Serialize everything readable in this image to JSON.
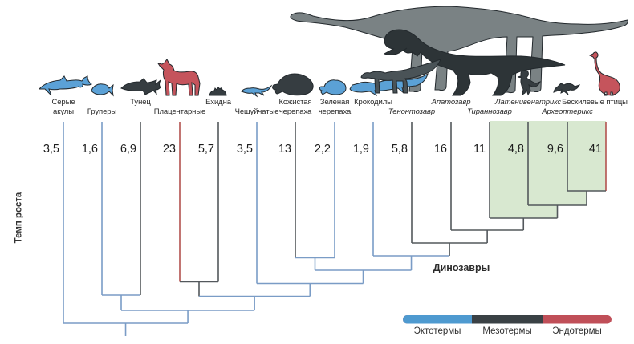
{
  "figure_type": "cladogram",
  "axis": {
    "y_title": "Темп роста"
  },
  "clade_label": "Динозавры",
  "taxa": [
    {
      "name": "Серые акулы",
      "lines": [
        "Серые",
        "акулы"
      ],
      "row": "both",
      "italic": false,
      "value": "3,5",
      "thermo": "ecto",
      "animal": "shark"
    },
    {
      "name": "Груперы",
      "lines": [
        "Груперы"
      ],
      "row": "bottom",
      "italic": false,
      "value": "1,6",
      "thermo": "ecto",
      "animal": "grouper"
    },
    {
      "name": "Тунец",
      "lines": [
        "Тунец"
      ],
      "row": "top",
      "italic": false,
      "value": "6,9",
      "thermo": "meso",
      "animal": "tuna"
    },
    {
      "name": "Плацентарные",
      "lines": [
        "Плацентарные"
      ],
      "row": "bottom",
      "italic": false,
      "value": "23",
      "thermo": "endo",
      "animal": "horse"
    },
    {
      "name": "Ехидна",
      "lines": [
        "Ехидна"
      ],
      "row": "top",
      "italic": false,
      "value": "5,7",
      "thermo": "meso",
      "animal": "echidna"
    },
    {
      "name": "Чешуйчатые",
      "lines": [
        "Чешуйчатые"
      ],
      "row": "bottom",
      "italic": false,
      "value": "3,5",
      "thermo": "ecto",
      "animal": "lizard"
    },
    {
      "name": "Кожистая черепаха",
      "lines": [
        "Кожистая",
        "черепаха"
      ],
      "row": "both",
      "italic": false,
      "value": "13",
      "thermo": "meso",
      "animal": "leatherback-turtle"
    },
    {
      "name": "Зеленая черепаха",
      "lines": [
        "Зеленая",
        "черепаха"
      ],
      "row": "both",
      "italic": false,
      "value": "2,2",
      "thermo": "ecto",
      "animal": "sea-turtle"
    },
    {
      "name": "Крокодилы",
      "lines": [
        "Крокодилы"
      ],
      "row": "top",
      "italic": false,
      "value": "1,9",
      "thermo": "ecto",
      "animal": "crocodile"
    },
    {
      "name": "Тенонтозавр",
      "lines": [
        "Тенонтозавр"
      ],
      "row": "bottom",
      "italic": true,
      "value": "5,8",
      "thermo": "meso",
      "animal": "tenontosaurus"
    },
    {
      "name": "Апатозавр",
      "lines": [
        "Апатозавр"
      ],
      "row": "top",
      "italic": true,
      "value": "16",
      "thermo": "meso",
      "animal": "apatosaurus"
    },
    {
      "name": "Тираннозавр",
      "lines": [
        "Тираннозавр"
      ],
      "row": "bottom",
      "italic": true,
      "value": "11",
      "thermo": "meso",
      "animal": "tyrannosaurus"
    },
    {
      "name": "Латенивенатрикс",
      "lines": [
        "Латенивенатрикс"
      ],
      "row": "top",
      "italic": true,
      "value": "4,8",
      "thermo": "meso",
      "animal": "latenivenatrix"
    },
    {
      "name": "Археоптерикс",
      "lines": [
        "Археоптерикс"
      ],
      "row": "bottom",
      "italic": true,
      "value": "9,6",
      "thermo": "meso",
      "animal": "archaeopteryx"
    },
    {
      "name": "Бескилевые птицы",
      "lines": [
        "Бескилевые птицы"
      ],
      "row": "top",
      "italic": false,
      "value": "41",
      "thermo": "endo",
      "animal": "ratite-bird"
    }
  ],
  "tree": {
    "newick": "(Серые акулы,((Груперы,Тунец),((Плацентарные,Ехидна),(Чешуйчатые,((Кожистая черепаха,Зеленая черепаха),(Крокодилы,(Тенонтозавр,(Апатозавр,(Тираннозавр,(Латенивенатрикс,(Археоптерикс,Бескилевые птицы)))))))))));",
    "highlighted_clade": "Тираннозавр+Латенивенатрикс+Археоптерикс+Бескилевые птицы"
  },
  "legend": [
    {
      "label": "Эктотермы",
      "color": "#4e9ad0"
    },
    {
      "label": "Мезотермы",
      "color": "#3a4145"
    },
    {
      "label": "Эндотермы",
      "color": "#c04f58"
    }
  ],
  "colors": {
    "branch_ecto": "#7a9cc6",
    "branch_meso": "#53585c",
    "branch_endo": "#b3524f",
    "highlight_green": "#d8e8d0",
    "text": "#2b2b2b"
  }
}
